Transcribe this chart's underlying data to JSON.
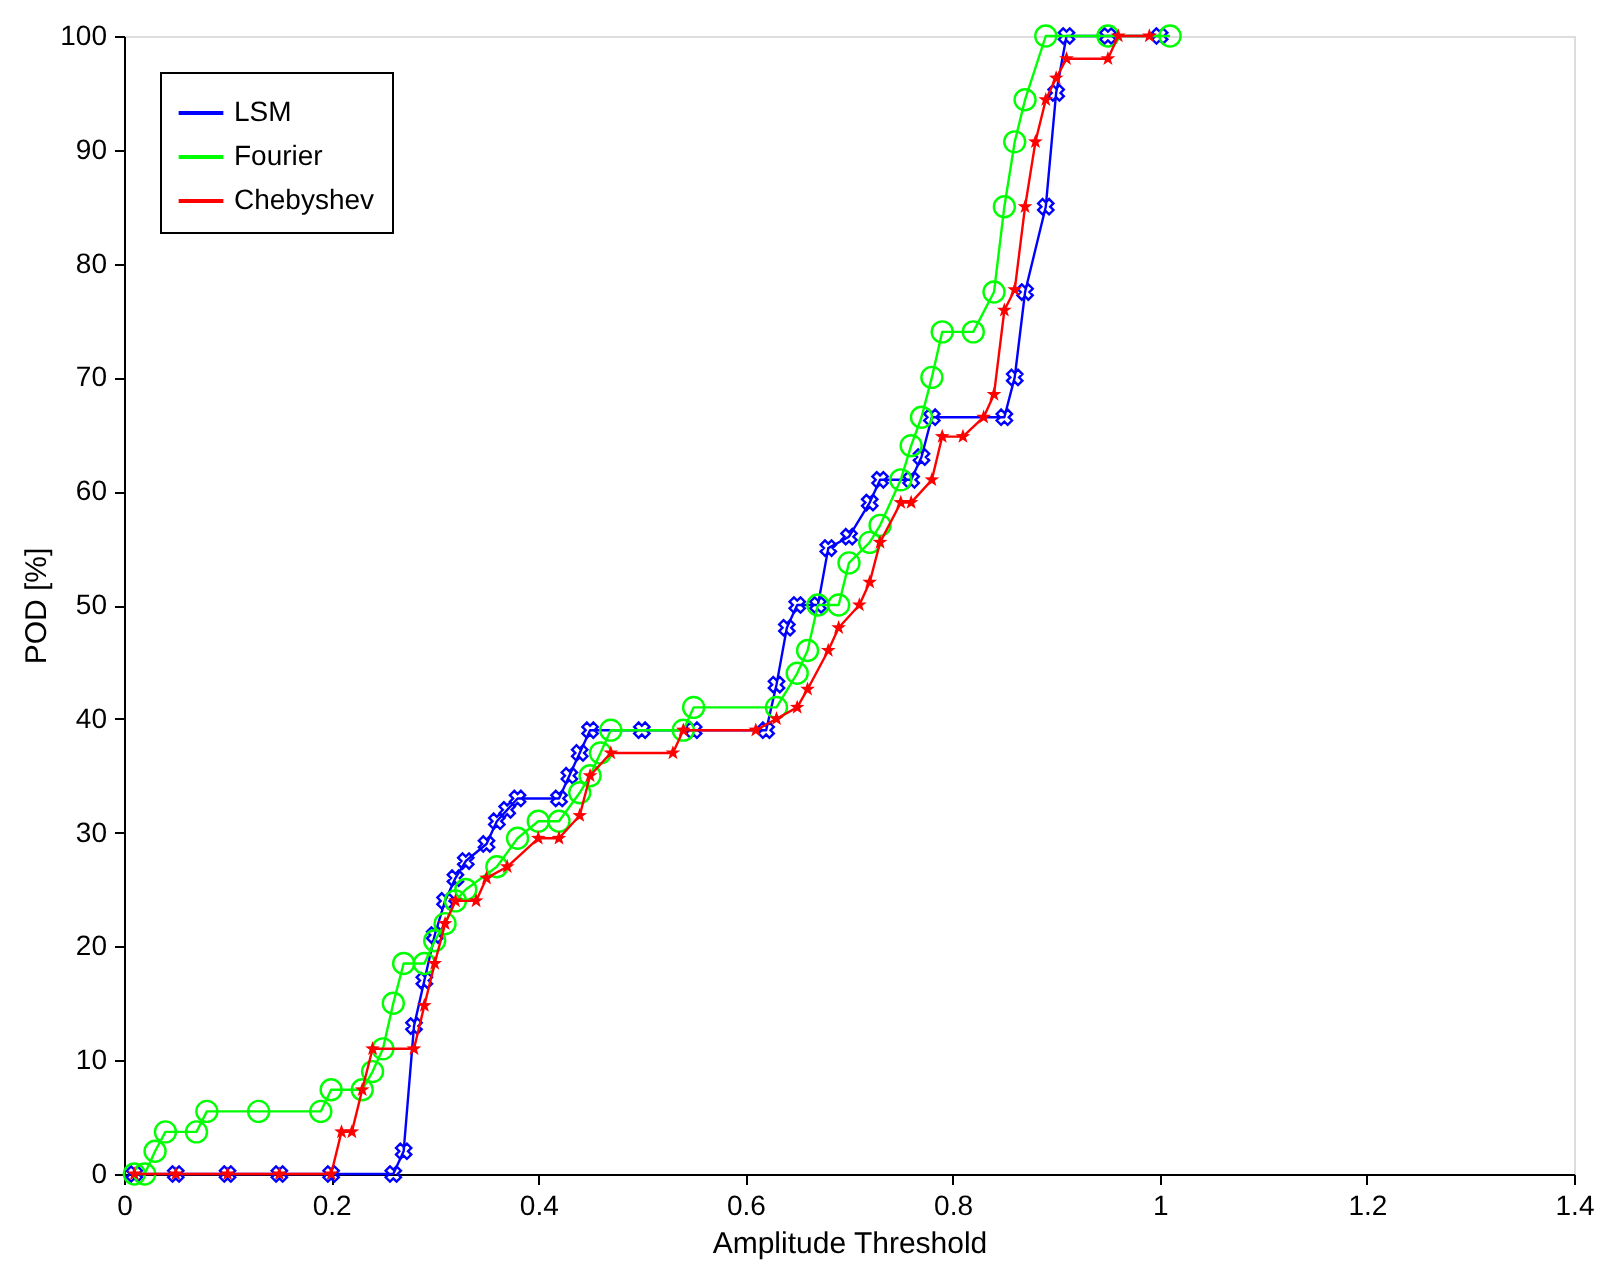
{
  "chart_data": {
    "type": "line",
    "xlabel": "Amplitude Threshold",
    "ylabel": "POD  [%]",
    "xlim": [
      0,
      1.4
    ],
    "xticks": [
      0,
      0.2,
      0.4,
      0.6,
      0.8,
      1,
      1.2,
      1.4
    ],
    "ylim": [
      0,
      100
    ],
    "yticks": [
      0,
      10,
      20,
      30,
      40,
      50,
      60,
      70,
      80,
      90,
      100
    ],
    "grid": false,
    "legend": "top left",
    "series": [
      {
        "name": "LSM",
        "color": "#0000ff",
        "marker": "cross",
        "x": [
          0.01,
          0.05,
          0.1,
          0.15,
          0.2,
          0.26,
          0.27,
          0.28,
          0.29,
          0.3,
          0.31,
          0.32,
          0.33,
          0.35,
          0.36,
          0.37,
          0.38,
          0.42,
          0.43,
          0.44,
          0.45,
          0.5,
          0.55,
          0.62,
          0.63,
          0.64,
          0.65,
          0.67,
          0.68,
          0.7,
          0.72,
          0.73,
          0.76,
          0.77,
          0.78,
          0.85,
          0.86,
          0.87,
          0.89,
          0.9,
          0.91,
          0.95,
          1.0
        ],
        "values": [
          0,
          0,
          0,
          0,
          0,
          0,
          2,
          13,
          17,
          21,
          24,
          26,
          27.5,
          29,
          31,
          32,
          33,
          33,
          35,
          37,
          39,
          39,
          39,
          39,
          43,
          48,
          50,
          50,
          55,
          56,
          59,
          61,
          61,
          63,
          66.5,
          66.5,
          70,
          77.5,
          85,
          95,
          100,
          100,
          100
        ]
      },
      {
        "name": "Fourier",
        "color": "#00ff00",
        "marker": "circle",
        "x": [
          0.01,
          0.02,
          0.03,
          0.04,
          0.07,
          0.08,
          0.13,
          0.19,
          0.2,
          0.23,
          0.24,
          0.25,
          0.26,
          0.27,
          0.29,
          0.3,
          0.31,
          0.32,
          0.33,
          0.36,
          0.38,
          0.4,
          0.42,
          0.44,
          0.45,
          0.46,
          0.47,
          0.54,
          0.55,
          0.63,
          0.65,
          0.66,
          0.67,
          0.69,
          0.7,
          0.72,
          0.73,
          0.75,
          0.76,
          0.77,
          0.78,
          0.79,
          0.82,
          0.84,
          0.85,
          0.86,
          0.87,
          0.89,
          0.95,
          1.01
        ],
        "values": [
          0,
          0,
          2,
          3.7,
          3.7,
          5.5,
          5.5,
          5.5,
          7.4,
          7.4,
          9,
          11,
          15,
          18.5,
          18.5,
          20.5,
          22,
          24,
          25,
          27,
          29.5,
          31,
          31,
          33.5,
          35,
          37,
          39,
          39,
          41,
          41,
          44,
          46,
          50,
          50,
          53.7,
          55.5,
          57,
          61,
          64,
          66.5,
          70,
          74,
          74,
          77.5,
          85,
          90.7,
          94.4,
          100,
          100,
          100
        ]
      },
      {
        "name": "Chebyshev",
        "color": "#ff0000",
        "marker": "star",
        "x": [
          0.01,
          0.05,
          0.1,
          0.15,
          0.2,
          0.21,
          0.22,
          0.23,
          0.24,
          0.28,
          0.29,
          0.3,
          0.31,
          0.32,
          0.34,
          0.35,
          0.37,
          0.4,
          0.42,
          0.44,
          0.45,
          0.47,
          0.53,
          0.54,
          0.61,
          0.63,
          0.65,
          0.66,
          0.68,
          0.69,
          0.71,
          0.72,
          0.73,
          0.75,
          0.76,
          0.78,
          0.79,
          0.81,
          0.83,
          0.84,
          0.85,
          0.86,
          0.87,
          0.88,
          0.89,
          0.9,
          0.91,
          0.95,
          0.96,
          0.99
        ],
        "values": [
          0,
          0,
          0,
          0,
          0,
          3.7,
          3.7,
          7.4,
          11,
          11,
          14.8,
          18.5,
          22,
          24,
          24,
          26,
          27,
          29.5,
          29.5,
          31.5,
          35,
          37,
          37,
          39,
          39,
          40,
          41,
          42.6,
          46,
          48,
          50,
          52,
          55.5,
          59,
          59,
          61,
          64.8,
          64.8,
          66.5,
          68.5,
          75.9,
          77.7,
          85,
          90.7,
          94.4,
          96.3,
          98,
          98,
          100,
          100
        ]
      }
    ]
  }
}
